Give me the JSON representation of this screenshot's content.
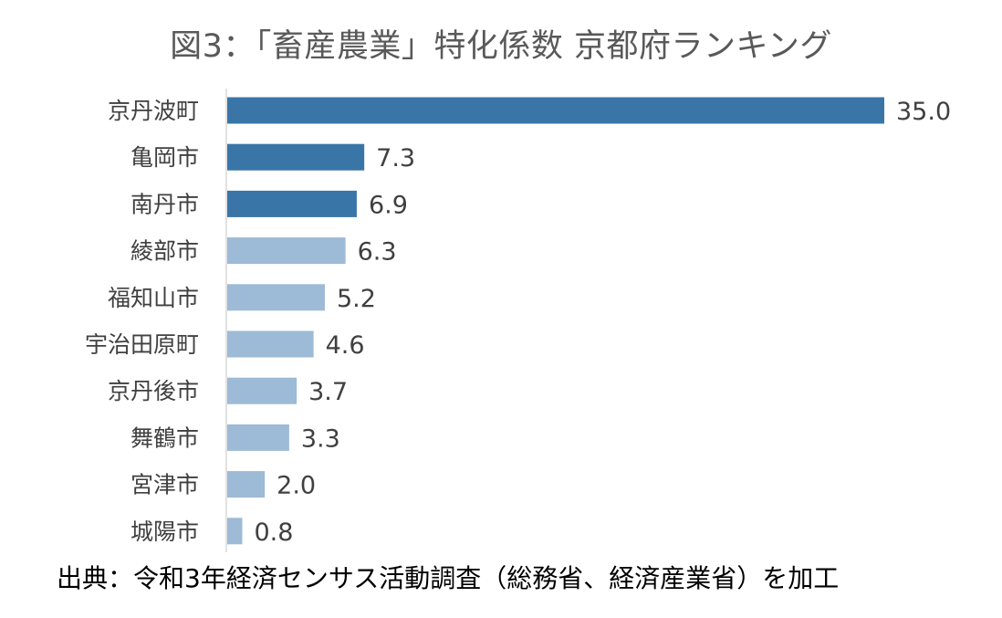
{
  "title": "図3：「畜産農業」特化係数 京都府ランキング",
  "source": "出典：令和3年経済センサス活動調査（総務省、経済産業省）を加工",
  "colors": {
    "highlight": "#3A75A8",
    "normal": "#9DBAD6",
    "label": "#404040",
    "axis": "#D9D9D9"
  },
  "chart_data": {
    "type": "bar",
    "orientation": "horizontal",
    "title": "図3：「畜産農業」特化係数 京都府ランキング",
    "categories": [
      "京丹波町",
      "亀岡市",
      "南丹市",
      "綾部市",
      "福知山市",
      "宇治田原町",
      "京丹後市",
      "舞鶴市",
      "宮津市",
      "城陽市"
    ],
    "values": [
      35.0,
      7.3,
      6.9,
      6.3,
      5.2,
      4.6,
      3.7,
      3.3,
      2.0,
      0.8
    ],
    "value_labels": [
      "35.0",
      "7.3",
      "6.9",
      "6.3",
      "5.2",
      "4.6",
      "3.7",
      "3.3",
      "2.0",
      "0.8"
    ],
    "highlighted": [
      true,
      true,
      true,
      false,
      false,
      false,
      false,
      false,
      false,
      false
    ],
    "xlim": [
      0,
      35
    ],
    "grid": false,
    "legend": "none"
  }
}
